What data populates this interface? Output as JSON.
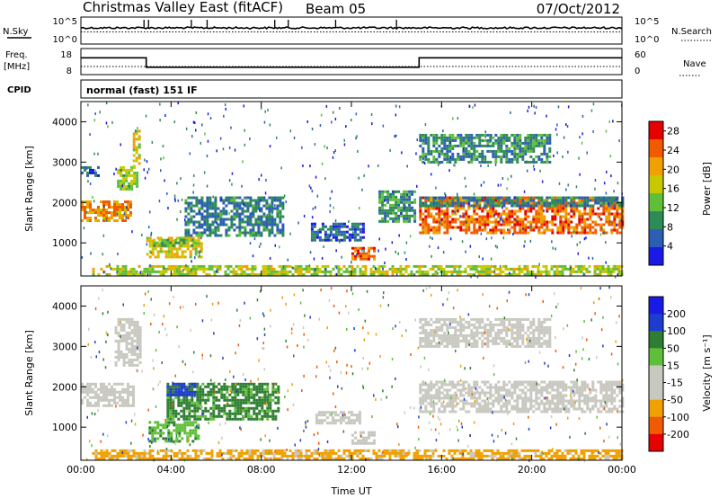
{
  "header": {
    "station": "Christmas Valley East (fitACF)",
    "beam": "Beam 05",
    "date": "07/Oct/2012"
  },
  "noise_panel": {
    "left_label": "N.Sky",
    "right_label": "N.Search",
    "ticks_left": [
      "10^5",
      "10^0"
    ],
    "ticks_right": [
      "10^5",
      "10^0"
    ]
  },
  "freq_panel": {
    "left_label_1": "Freq.",
    "left_label_2": "[MHz]",
    "right_label": "Nave",
    "ticks_left": [
      "18",
      "8"
    ],
    "ticks_right": [
      "60",
      "0"
    ]
  },
  "cpid": {
    "label": "CPID",
    "mode": "normal (fast) 151 IF"
  },
  "chart_data": [
    {
      "type": "line",
      "name": "noise",
      "series": [
        {
          "label": "N.Sky",
          "level": 0.6,
          "spikes_hours": [
            2.8,
            3.0,
            4.9,
            5.6,
            8.6,
            9.2,
            11.3,
            14.0
          ]
        },
        {
          "label": "N.Search",
          "level": 0.45
        }
      ]
    },
    {
      "type": "line",
      "name": "frequency",
      "xlim": [
        0,
        24
      ],
      "ylim": [
        8,
        18
      ],
      "frequency_mhz": [
        {
          "x": 0,
          "y": 15
        },
        {
          "x": 2.9,
          "y": 15
        },
        {
          "x": 2.9,
          "y": 10
        },
        {
          "x": 15.0,
          "y": 10
        },
        {
          "x": 15.0,
          "y": 15
        },
        {
          "x": 24,
          "y": 15
        }
      ],
      "nave": [
        {
          "x": 0,
          "y": 20
        },
        {
          "x": 24,
          "y": 20
        }
      ]
    },
    {
      "type": "heatmap",
      "name": "power",
      "xlabel": "",
      "ylabel": "Slant Range [km]",
      "xlim": [
        0,
        24
      ],
      "ylim": [
        180,
        4500
      ],
      "yticks": [
        "1000",
        "2000",
        "3000",
        "4000"
      ],
      "colorbar_label": "Power [dB]",
      "colorbar_ticks": [
        "4",
        "8",
        "12",
        "16",
        "20",
        "24",
        "28"
      ],
      "colorbar_range": [
        0,
        30
      ],
      "colorbar_colors": [
        "#1a1ae6",
        "#2c5fb4",
        "#2e8b57",
        "#5fbf3a",
        "#c8c800",
        "#f0a000",
        "#f05a00",
        "#e60000"
      ],
      "bands": [
        {
          "t0": 0.0,
          "t1": 2.2,
          "r0": 1550,
          "r1": 2050,
          "value": 22
        },
        {
          "t0": 1.6,
          "t1": 2.5,
          "r0": 2300,
          "r1": 2900,
          "value": 14
        },
        {
          "t0": 2.3,
          "t1": 2.6,
          "r0": 2900,
          "r1": 3800,
          "value": 18
        },
        {
          "t0": 0.0,
          "t1": 0.8,
          "r0": 2650,
          "r1": 2900,
          "value": 6
        },
        {
          "t0": 2.9,
          "t1": 5.4,
          "r0": 650,
          "r1": 1150,
          "value": 18
        },
        {
          "t0": 3.2,
          "t1": 5.0,
          "r0": 950,
          "r1": 1100,
          "value": 12
        },
        {
          "t0": 4.6,
          "t1": 9.0,
          "r0": 1150,
          "r1": 2150,
          "value": 8
        },
        {
          "t0": 10.2,
          "t1": 12.5,
          "r0": 1050,
          "r1": 1500,
          "value": 6
        },
        {
          "t0": 12.0,
          "t1": 13.0,
          "r0": 600,
          "r1": 900,
          "value": 24
        },
        {
          "t0": 13.2,
          "t1": 14.8,
          "r0": 1500,
          "r1": 2300,
          "value": 10
        },
        {
          "t0": 15.0,
          "t1": 24.0,
          "r0": 1250,
          "r1": 2150,
          "value": 24
        },
        {
          "t0": 15.0,
          "t1": 24.0,
          "r0": 1900,
          "r1": 2150,
          "value": 8
        },
        {
          "t0": 15.0,
          "t1": 20.8,
          "r0": 3000,
          "r1": 3700,
          "value": 9
        },
        {
          "t0": 0.5,
          "t1": 24.0,
          "r0": 200,
          "r1": 450,
          "value": 16
        }
      ]
    },
    {
      "type": "heatmap",
      "name": "velocity",
      "xlabel": "Time UT",
      "ylabel": "Slant Range [km]",
      "xlim": [
        0,
        24
      ],
      "ylim": [
        180,
        4500
      ],
      "xticks": [
        "00:00",
        "04:00",
        "08:00",
        "12:00",
        "16:00",
        "20:00",
        "00:00"
      ],
      "yticks": [
        "1000",
        "2000",
        "3000",
        "4000"
      ],
      "colorbar_label": "Velocity [m s⁻¹]",
      "colorbar_ticks": [
        "200",
        "100",
        "50",
        "15",
        "-15",
        "-50",
        "-100",
        "-200"
      ],
      "colorbar_colors": [
        "#1a1ae6",
        "#1e3cd0",
        "#2e7d32",
        "#5fbf3a",
        "#c8c8c0",
        "#c8c8c0",
        "#f0a000",
        "#f05a00",
        "#e60000"
      ],
      "bands": [
        {
          "t0": 0.0,
          "t1": 2.3,
          "r0": 1500,
          "r1": 2100,
          "value": 0
        },
        {
          "t0": 1.5,
          "t1": 2.6,
          "r0": 2500,
          "r1": 3700,
          "value": 0
        },
        {
          "t0": 3.0,
          "t1": 5.2,
          "r0": 650,
          "r1": 1150,
          "value": 40
        },
        {
          "t0": 3.8,
          "t1": 8.8,
          "r0": 1200,
          "r1": 2100,
          "value": 60
        },
        {
          "t0": 3.8,
          "t1": 5.0,
          "r0": 1800,
          "r1": 2100,
          "value": 150
        },
        {
          "t0": 10.4,
          "t1": 12.4,
          "r0": 1100,
          "r1": 1400,
          "value": 0
        },
        {
          "t0": 12.0,
          "t1": 13.0,
          "r0": 600,
          "r1": 900,
          "value": 0
        },
        {
          "t0": 15.0,
          "t1": 24.0,
          "r0": 1350,
          "r1": 2150,
          "value": 0
        },
        {
          "t0": 15.0,
          "t1": 20.8,
          "r0": 3000,
          "r1": 3700,
          "value": 0
        },
        {
          "t0": 0.5,
          "t1": 24.0,
          "r0": 200,
          "r1": 450,
          "value": -60
        }
      ]
    }
  ]
}
